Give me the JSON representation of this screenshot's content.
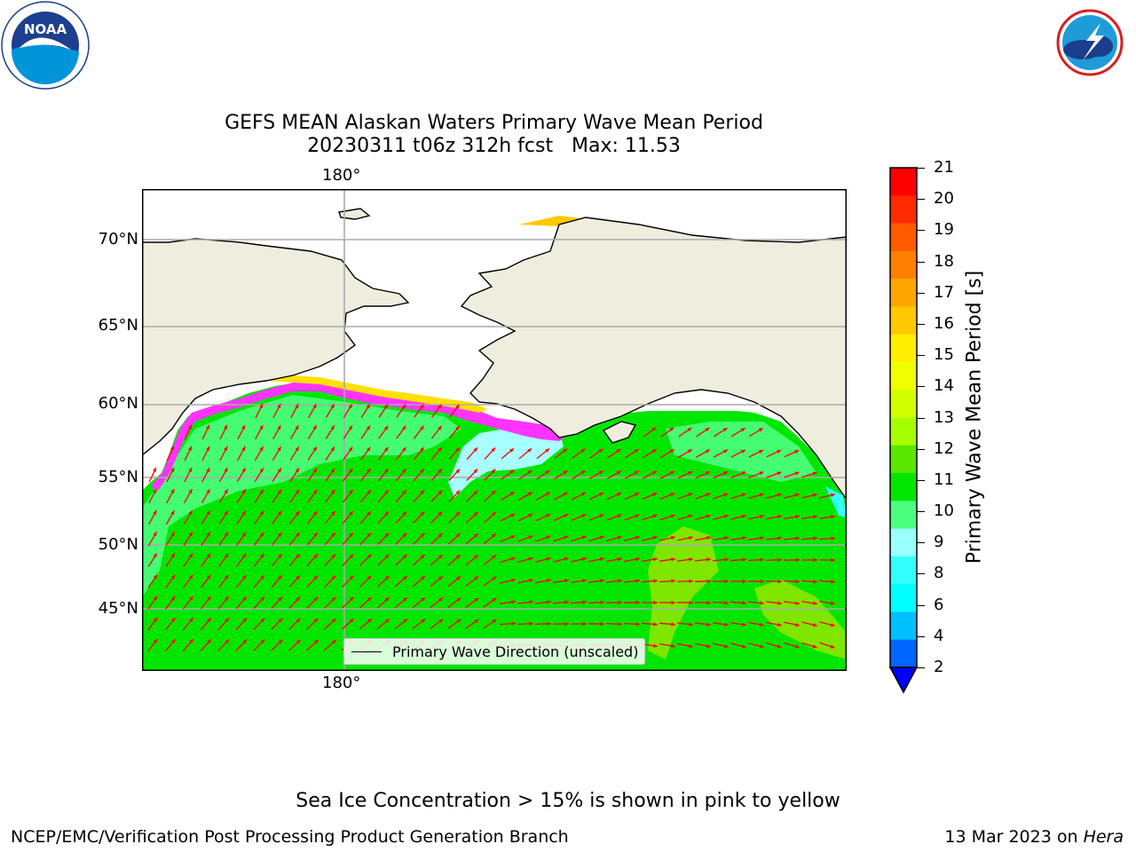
{
  "title": {
    "line1": "GEFS MEAN Alaskan Waters Primary Wave Mean Period",
    "line2": "20230311 t06z 312h fcst   Max: 11.53"
  },
  "logos": {
    "left": {
      "name": "noaa-logo",
      "text": "NOAA",
      "ring_text": "NATIONAL OCEANIC AND ATMOSPHERIC ADMINISTRATION · U.S. DEPARTMENT OF COMMERCE"
    },
    "right": {
      "name": "nws-logo",
      "ring_text": "NATIONAL WEATHER SERVICE"
    }
  },
  "map": {
    "lon_labels": {
      "top": "180°",
      "bottom": "180°"
    },
    "lat_labels": [
      "70°N",
      "65°N",
      "60°N",
      "55°N",
      "50°N",
      "45°N"
    ],
    "colors": {
      "land": "#efedde",
      "ocean_dominant": "#00e600",
      "arrow": "#ff0000",
      "ice_pink": "#ff33ff",
      "ice_yellow": "#ffe000",
      "gridline": "#aaaaaa"
    },
    "legend_label": "Primary Wave Direction (unscaled)"
  },
  "colorbar": {
    "title": "Primary Wave Mean Period [s]",
    "labels": [
      "21",
      "20",
      "19",
      "18",
      "17",
      "16",
      "15",
      "14",
      "13",
      "12",
      "11",
      "10",
      "9",
      "8",
      "6",
      "4",
      "2"
    ],
    "colors": [
      "#ff0000",
      "#ff2a00",
      "#ff5a00",
      "#ff7f00",
      "#ffa500",
      "#ffc800",
      "#ffee00",
      "#f0ff00",
      "#d2ff00",
      "#a5ff00",
      "#5ae600",
      "#00e600",
      "#4dff80",
      "#99ffff",
      "#33ffff",
      "#00ffff",
      "#00bfff",
      "#0066ff"
    ],
    "extend_color": "#0000ff"
  },
  "note": "Sea Ice Concentration > 15% is shown in pink to yellow",
  "footer": {
    "left": "NCEP/EMC/Verification Post Processing Product Generation Branch",
    "right_prefix": "13 Mar 2023 on ",
    "right_italic": "Hera"
  }
}
